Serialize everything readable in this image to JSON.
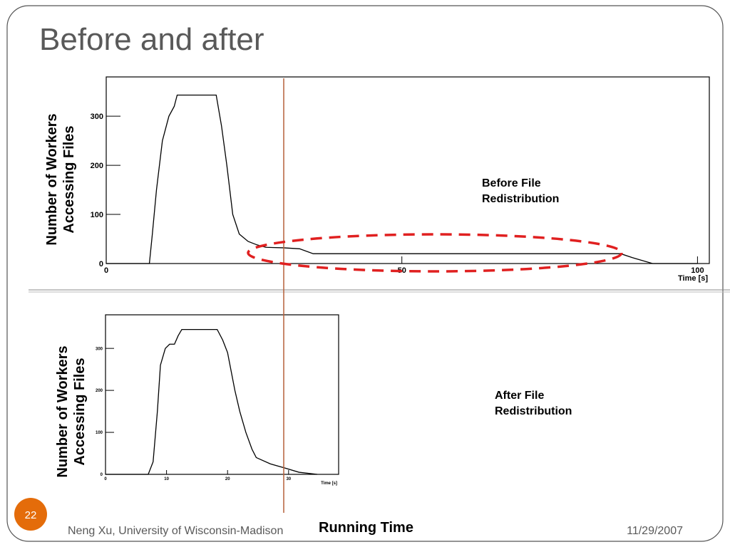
{
  "slide": {
    "title": "Before and after",
    "footer": "Neng Xu, University of Wisconsin-Madison",
    "date": "11/29/2007",
    "page": "22",
    "running_time": "Running Time",
    "before_label": "Before File Redistribution",
    "after_label": "After File Redistribution"
  },
  "chart_data": [
    {
      "type": "line",
      "xlabel": "Time [s]",
      "ylabel": "Number of Workers Accessing Files",
      "xlim": [
        0,
        102
      ],
      "ylim": [
        0,
        380
      ],
      "xticks": [
        0,
        50,
        100
      ],
      "yticks": [
        0,
        100,
        200,
        300
      ],
      "color": "#000000",
      "x": [
        0,
        7.3,
        7.8,
        8.5,
        9.5,
        10.6,
        11.5,
        12,
        18.6,
        19.5,
        20.4,
        21.4,
        22.5,
        24,
        25.5,
        27,
        30,
        32.7,
        35,
        60,
        87,
        89,
        92.4,
        100
      ],
      "values": [
        0,
        0,
        60,
        150,
        250,
        300,
        320,
        343,
        343,
        280,
        200,
        100,
        60,
        45,
        38,
        33,
        32,
        30,
        20,
        20,
        20,
        12,
        0,
        0
      ]
    },
    {
      "type": "line",
      "xlabel": "Time [s]",
      "ylabel": "Number of Workers Accessing Files",
      "xlim": [
        0,
        38.2
      ],
      "ylim": [
        0,
        380
      ],
      "xticks": [
        0,
        10,
        20,
        30
      ],
      "yticks": [
        0,
        100,
        200,
        300
      ],
      "color": "#000000",
      "x": [
        0,
        7,
        7.8,
        8.5,
        9,
        9.8,
        10.5,
        11.3,
        11.9,
        12.5,
        18.3,
        19.2,
        20,
        21.2,
        22,
        23,
        24,
        24.7,
        27,
        29.4,
        31.7,
        34.7
      ],
      "values": [
        0,
        0,
        30,
        150,
        260,
        300,
        310,
        310,
        330,
        345,
        345,
        320,
        290,
        200,
        150,
        100,
        60,
        40,
        25,
        15,
        5,
        0
      ]
    }
  ]
}
